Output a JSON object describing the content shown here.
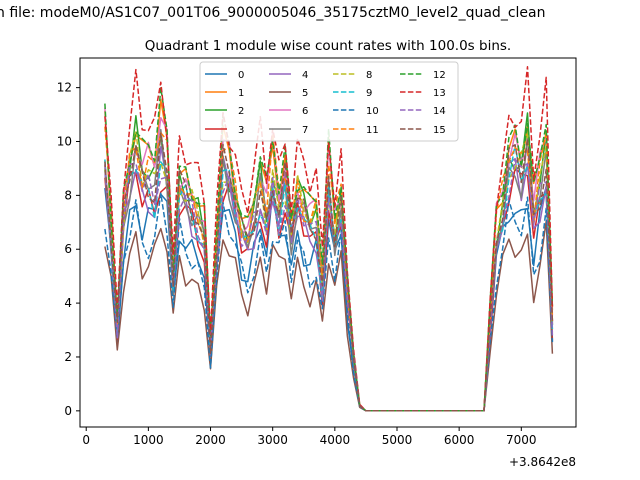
{
  "suptitle": "n file: modeM0/AS1C07_001T06_9000005046_35175cztM0_level2_quad_clean",
  "chart_data": {
    "type": "line",
    "title": "Quadrant 1 module wise count rates with 100.0s bins.",
    "xlabel": "",
    "ylabel": "",
    "x_offset_label": "+3.8642e8",
    "xlim": [
      -100,
      7880
    ],
    "ylim": [
      -0.6,
      13.1
    ],
    "xticks": [
      0,
      1000,
      2000,
      3000,
      4000,
      5000,
      6000,
      7000
    ],
    "yticks": [
      0,
      2,
      4,
      6,
      8,
      10,
      12
    ],
    "legend": {
      "position": "top-center",
      "ncol": 4
    },
    "x": [
      300,
      400,
      500,
      600,
      700,
      800,
      900,
      1000,
      1100,
      1200,
      1300,
      1400,
      1500,
      1600,
      1700,
      1800,
      1900,
      2000,
      2100,
      2200,
      2300,
      2400,
      2500,
      2600,
      2700,
      2800,
      2900,
      3000,
      3100,
      3200,
      3300,
      3400,
      3500,
      3600,
      3700,
      3800,
      3900,
      4000,
      4100,
      4200,
      4300,
      4400,
      4500,
      4600,
      4700,
      4800,
      4900,
      5000,
      5100,
      5200,
      5300,
      5400,
      5500,
      5600,
      5700,
      5800,
      5900,
      6000,
      6100,
      6200,
      6300,
      6400,
      6500,
      6600,
      6700,
      6800,
      6900,
      7000,
      7100,
      7200,
      7300,
      7400,
      7500
    ],
    "base_profile": [
      10.1,
      7.0,
      3.3,
      7.6,
      9.3,
      10.3,
      9.0,
      9.1,
      8.9,
      10.6,
      9.5,
      5.1,
      8.8,
      8.4,
      7.9,
      7.4,
      6.7,
      2.5,
      6.5,
      9.9,
      9.3,
      8.2,
      7.0,
      6.6,
      7.6,
      8.8,
      7.5,
      9.4,
      7.9,
      9.0,
      6.9,
      8.5,
      7.8,
      7.2,
      7.5,
      5.0,
      9.1,
      6.9,
      8.3,
      4.7,
      2.1,
      0.2,
      0.0,
      0.0,
      0.0,
      0.0,
      0.0,
      0.0,
      0.0,
      0.0,
      0.0,
      0.0,
      0.0,
      0.0,
      0.0,
      0.0,
      0.0,
      0.0,
      0.0,
      0.0,
      0.0,
      0.0,
      3.6,
      6.9,
      8.0,
      9.6,
      9.9,
      9.3,
      10.4,
      7.5,
      8.8,
      10.1,
      3.4
    ],
    "series": [
      {
        "name": "0",
        "style": "solid",
        "color": "#1f77b4",
        "scale": 0.78
      },
      {
        "name": "1",
        "style": "solid",
        "color": "#ff7f0e",
        "scale": 1.04
      },
      {
        "name": "2",
        "style": "solid",
        "color": "#2ca02c",
        "scale": 0.97
      },
      {
        "name": "3",
        "style": "solid",
        "color": "#d62728",
        "scale": 0.86
      },
      {
        "name": "4",
        "style": "solid",
        "color": "#9467bd",
        "scale": 0.88
      },
      {
        "name": "5",
        "style": "solid",
        "color": "#8c564b",
        "scale": 0.63
      },
      {
        "name": "6",
        "style": "solid",
        "color": "#e377c2",
        "scale": 1.02
      },
      {
        "name": "7",
        "style": "solid",
        "color": "#7f7f7f",
        "scale": 0.92
      },
      {
        "name": "8",
        "style": "dashed",
        "color": "#bcbd22",
        "scale": 0.95
      },
      {
        "name": "9",
        "style": "dashed",
        "color": "#17becf",
        "scale": 0.9
      },
      {
        "name": "10",
        "style": "dashed",
        "color": "#1f77b4",
        "scale": 0.72
      },
      {
        "name": "11",
        "style": "dashed",
        "color": "#ff7f0e",
        "scale": 1.0
      },
      {
        "name": "12",
        "style": "dashed",
        "color": "#2ca02c",
        "scale": 1.06
      },
      {
        "name": "13",
        "style": "dashed",
        "color": "#d62728",
        "scale": 1.15
      },
      {
        "name": "14",
        "style": "dashed",
        "color": "#9467bd",
        "scale": 0.9
      },
      {
        "name": "15",
        "style": "dashed",
        "color": "#8c564b",
        "scale": 0.94
      }
    ]
  }
}
